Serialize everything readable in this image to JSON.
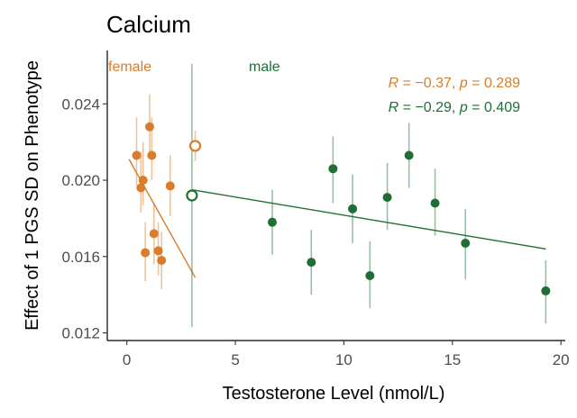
{
  "chart_data": {
    "type": "scatter",
    "title": "Calcium",
    "xlabel": "Testosterone Level (nmol/L)",
    "ylabel": "Effect of 1 PGS SD on Phenotype",
    "xlim": [
      -0.9,
      20.2
    ],
    "ylim": [
      0.0116,
      0.0268
    ],
    "xticks": [
      0,
      5,
      10,
      15,
      20
    ],
    "xtick_labels": [
      "0",
      "5",
      "10",
      "15",
      "20"
    ],
    "yticks": [
      0.012,
      0.016,
      0.02,
      0.024
    ],
    "ytick_labels": [
      "0.012",
      "0.016",
      "0.020",
      "0.024"
    ],
    "grid": false,
    "colors": {
      "female": "#d97c2b",
      "male": "#1e6f35"
    },
    "series": [
      {
        "name": "female",
        "color": "#d97c2b",
        "points": [
          {
            "x": 0.45,
            "y": 0.0213,
            "lo": 0.0197,
            "hi": 0.0233
          },
          {
            "x": 0.65,
            "y": 0.0196,
            "lo": 0.0183,
            "hi": 0.0215
          },
          {
            "x": 0.75,
            "y": 0.02,
            "lo": 0.0187,
            "hi": 0.022
          },
          {
            "x": 0.85,
            "y": 0.0162,
            "lo": 0.0147,
            "hi": 0.0178
          },
          {
            "x": 1.05,
            "y": 0.0228,
            "lo": 0.0213,
            "hi": 0.0245
          },
          {
            "x": 1.15,
            "y": 0.0213,
            "lo": 0.02,
            "hi": 0.0233
          },
          {
            "x": 1.25,
            "y": 0.0172,
            "lo": 0.0156,
            "hi": 0.0188
          },
          {
            "x": 1.45,
            "y": 0.0163,
            "lo": 0.015,
            "hi": 0.0178
          },
          {
            "x": 1.6,
            "y": 0.0158,
            "lo": 0.0143,
            "hi": 0.0173
          },
          {
            "x": 2.0,
            "y": 0.0197,
            "lo": 0.0181,
            "hi": 0.0213
          }
        ],
        "highlight": {
          "x": 3.15,
          "y": 0.0218,
          "lo": 0.021,
          "hi": 0.0226
        },
        "trend": {
          "x0": 0.1,
          "y0": 0.0211,
          "x1": 3.15,
          "y1": 0.0149
        },
        "annotation": {
          "R": "−0.37",
          "p": "0.289"
        }
      },
      {
        "name": "male",
        "color": "#1e6f35",
        "points": [
          {
            "x": 6.7,
            "y": 0.0178,
            "lo": 0.0161,
            "hi": 0.0195
          },
          {
            "x": 8.5,
            "y": 0.0157,
            "lo": 0.014,
            "hi": 0.0174
          },
          {
            "x": 9.5,
            "y": 0.0206,
            "lo": 0.0188,
            "hi": 0.0223
          },
          {
            "x": 10.4,
            "y": 0.0185,
            "lo": 0.0167,
            "hi": 0.0203
          },
          {
            "x": 11.2,
            "y": 0.015,
            "lo": 0.0133,
            "hi": 0.0168
          },
          {
            "x": 12.0,
            "y": 0.0191,
            "lo": 0.0174,
            "hi": 0.0209
          },
          {
            "x": 13.0,
            "y": 0.0213,
            "lo": 0.0196,
            "hi": 0.023
          },
          {
            "x": 14.2,
            "y": 0.0188,
            "lo": 0.0171,
            "hi": 0.0206
          },
          {
            "x": 15.6,
            "y": 0.0167,
            "lo": 0.0148,
            "hi": 0.0185
          },
          {
            "x": 19.3,
            "y": 0.0142,
            "lo": 0.0125,
            "hi": 0.0158
          }
        ],
        "highlight": {
          "x": 3.0,
          "y": 0.0192,
          "lo": 0.0123,
          "hi": 0.0261
        },
        "trend": {
          "x0": 3.0,
          "y0": 0.0195,
          "x1": 19.3,
          "y1": 0.0164
        },
        "annotation": {
          "R": "−0.29",
          "p": "0.409"
        }
      }
    ]
  }
}
